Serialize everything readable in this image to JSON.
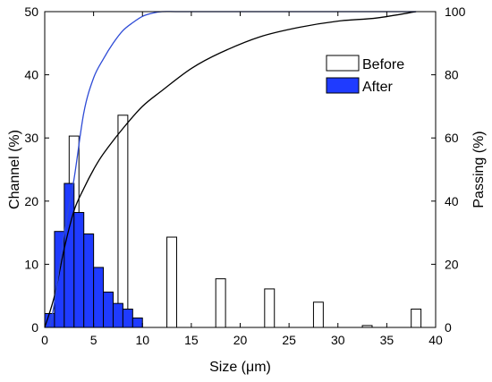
{
  "chart_data": {
    "type": "bar",
    "xlabel": "Size (μm)",
    "ylabel": "Channel (%)",
    "y2label": "Passing (%)",
    "xlim": [
      0,
      40
    ],
    "ylim": [
      0,
      50
    ],
    "y2lim": [
      0,
      100
    ],
    "xticks": [
      "0",
      "5",
      "10",
      "15",
      "20",
      "25",
      "30",
      "35",
      "40"
    ],
    "yticks": [
      "0",
      "10",
      "20",
      "30",
      "40",
      "50"
    ],
    "y2ticks": [
      "0",
      "20",
      "40",
      "60",
      "80",
      "100"
    ],
    "grid": false,
    "legend": {
      "position": "top-right",
      "entries": [
        "Before",
        "After"
      ]
    },
    "series": [
      {
        "name": "Before",
        "kind": "bar",
        "color": "#ffffff",
        "bar_width": 1.0,
        "x": [
          3,
          8,
          13,
          18,
          23,
          28,
          33,
          38
        ],
        "values": [
          30.3,
          33.6,
          14.3,
          7.7,
          6.1,
          4.0,
          0.3,
          2.9
        ]
      },
      {
        "name": "After",
        "kind": "bar",
        "color": "#1f3bff",
        "bar_width": 1.0,
        "x": [
          0.5,
          1.5,
          2.5,
          3.5,
          4.5,
          5.5,
          6.5,
          7.5,
          8.5,
          9.5
        ],
        "values": [
          2.2,
          15.2,
          22.8,
          18.2,
          14.8,
          9.5,
          5.6,
          3.8,
          2.9,
          1.5
        ]
      },
      {
        "kind": "line",
        "axis": "y2",
        "color": "#000000",
        "x": [
          0,
          1,
          2,
          3,
          4,
          5,
          6,
          8,
          10,
          12,
          15,
          18,
          22,
          26,
          30,
          34,
          38
        ],
        "values": [
          0,
          10,
          25,
          37,
          44,
          50,
          55,
          63,
          70,
          75,
          82,
          87,
          92,
          95,
          97,
          98,
          100
        ]
      },
      {
        "kind": "line",
        "axis": "y2",
        "color": "#2e4bd6",
        "x": [
          0.5,
          1,
          2,
          3,
          4,
          5,
          6,
          7,
          8,
          9,
          10,
          11,
          12,
          14,
          20,
          30,
          38
        ],
        "values": [
          0,
          8,
          30,
          47,
          68,
          79,
          85,
          90,
          94,
          96.5,
          98.5,
          99.5,
          100,
          100,
          100,
          100,
          100
        ]
      }
    ]
  }
}
